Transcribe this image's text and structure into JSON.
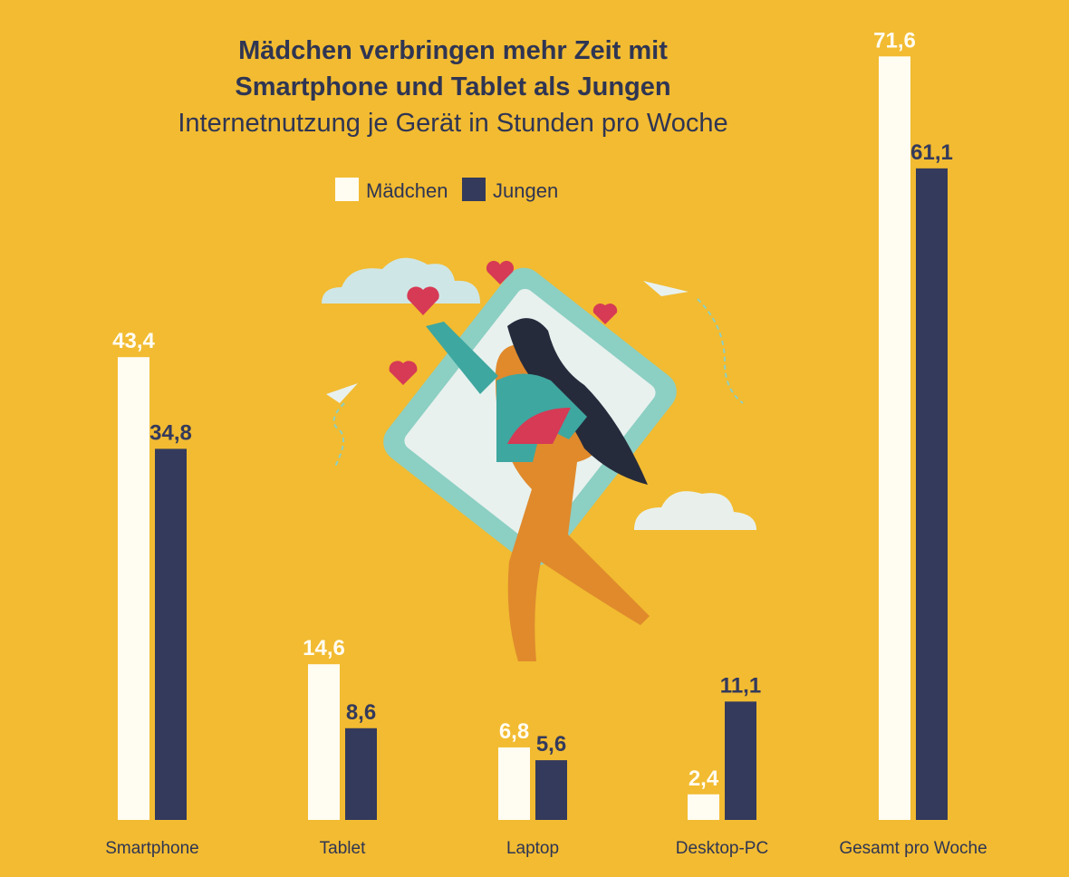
{
  "chart_data": {
    "type": "bar",
    "title": "Mädchen verbringen mehr Zeit mit Smartphone und Tablet als Jungen",
    "subtitle": "Internetnutzung je Gerät in Stunden pro Woche",
    "categories": [
      "Smartphone",
      "Tablet",
      "Laptop",
      "Desktop-PC",
      "Gesamt pro Woche"
    ],
    "series": [
      {
        "name": "Mädchen",
        "color": "#fffcf2",
        "label_color": "#fffcf2",
        "values": [
          43.4,
          14.6,
          6.8,
          2.4,
          71.6
        ],
        "value_labels": [
          "43,4",
          "14,6",
          "6,8",
          "2,4",
          "71,6"
        ]
      },
      {
        "name": "Jungen",
        "color": "#343a5c",
        "label_color": "#343a5c",
        "values": [
          34.8,
          8.6,
          5.6,
          11.1,
          61.1
        ],
        "value_labels": [
          "34,8",
          "8,6",
          "5,6",
          "11,1",
          "61,1"
        ]
      }
    ]
  }
}
